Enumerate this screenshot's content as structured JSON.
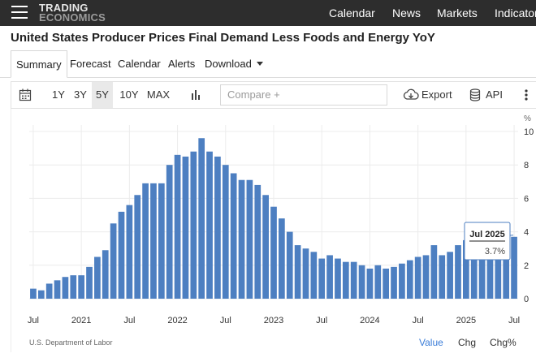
{
  "header": {
    "logo_line1": "TRADING",
    "logo_line2": "ECONOMICS",
    "nav": [
      "Calendar",
      "News",
      "Markets",
      "Indicators"
    ]
  },
  "page_title": "United States Producer Prices Final Demand Less Foods and Energy YoY",
  "tabs": [
    "Summary",
    "Forecast",
    "Calendar",
    "Alerts",
    "Download"
  ],
  "toolbar": {
    "ranges": [
      "1Y",
      "3Y",
      "5Y",
      "10Y",
      "MAX"
    ],
    "active_range": "5Y",
    "compare_placeholder": "Compare +",
    "export_label": "Export",
    "api_label": "API"
  },
  "chart_data": {
    "type": "bar",
    "y_unit": "%",
    "ylim": [
      0,
      10
    ],
    "y_ticks": [
      0,
      2,
      4,
      6,
      8,
      10
    ],
    "x_tick_labels": [
      "Jul",
      "2021",
      "Jul",
      "2022",
      "Jul",
      "2023",
      "Jul",
      "2024",
      "Jul",
      "2025",
      "Jul"
    ],
    "start_month": "2020-07",
    "end_month": "2025-07",
    "values": [
      0.6,
      0.5,
      0.9,
      1.1,
      1.3,
      1.4,
      1.4,
      1.9,
      2.5,
      2.9,
      4.5,
      5.2,
      5.6,
      6.2,
      6.9,
      6.9,
      6.9,
      8.0,
      8.6,
      8.5,
      8.8,
      9.6,
      8.8,
      8.5,
      8.0,
      7.5,
      7.1,
      7.1,
      6.8,
      6.2,
      5.5,
      4.8,
      4.0,
      3.2,
      3.0,
      2.8,
      2.4,
      2.6,
      2.4,
      2.2,
      2.2,
      2.0,
      1.8,
      2.0,
      1.8,
      1.9,
      2.1,
      2.3,
      2.5,
      2.6,
      3.2,
      2.6,
      2.8,
      3.2,
      3.5,
      3.4,
      3.6,
      2.9,
      3.0,
      2.8,
      3.7
    ],
    "tooltip": {
      "label": "Jul 2025",
      "value": "3.7%"
    },
    "colors": {
      "bar": "#4d7fc1",
      "grid": "#ececec",
      "axis_text": "#333333"
    }
  },
  "footer": {
    "source": "U.S. Department of Labor",
    "view_buttons": [
      "Value",
      "Chg",
      "Chg%"
    ],
    "active_view": "Value"
  }
}
